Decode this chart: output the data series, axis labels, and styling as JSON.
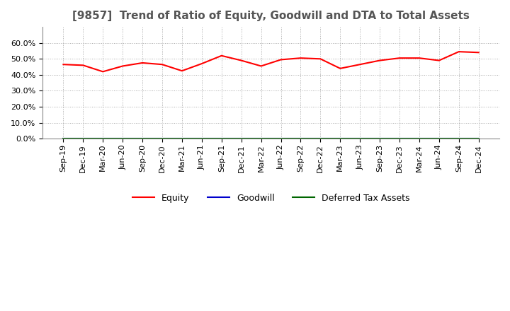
{
  "title": "[9857]  Trend of Ratio of Equity, Goodwill and DTA to Total Assets",
  "x_labels": [
    "Sep-19",
    "Dec-19",
    "Mar-20",
    "Jun-20",
    "Sep-20",
    "Dec-20",
    "Mar-21",
    "Jun-21",
    "Sep-21",
    "Dec-21",
    "Mar-22",
    "Jun-22",
    "Sep-22",
    "Dec-22",
    "Mar-23",
    "Jun-23",
    "Sep-23",
    "Dec-23",
    "Mar-24",
    "Jun-24",
    "Sep-24",
    "Dec-24"
  ],
  "equity": [
    0.465,
    0.46,
    0.42,
    0.455,
    0.475,
    0.465,
    0.425,
    0.47,
    0.52,
    0.49,
    0.455,
    0.495,
    0.505,
    0.5,
    0.44,
    0.465,
    0.49,
    0.505,
    0.505,
    0.49,
    0.545,
    0.54
  ],
  "goodwill": [
    0.0,
    0.0,
    0.0,
    0.0,
    0.0,
    0.0,
    0.0,
    0.0,
    0.0,
    0.0,
    0.0,
    0.0,
    0.0,
    0.0,
    0.0,
    0.0,
    0.0,
    0.0,
    0.0,
    0.0,
    0.0,
    0.0
  ],
  "dta": [
    0.0,
    0.0,
    0.0,
    0.0,
    0.0,
    0.0,
    0.0,
    0.0,
    0.0,
    0.0,
    0.0,
    0.0,
    0.0,
    0.0,
    0.0,
    0.0,
    0.0,
    0.0,
    0.0,
    0.0,
    0.0,
    0.0
  ],
  "equity_color": "#ff0000",
  "goodwill_color": "#0000cc",
  "dta_color": "#006600",
  "ylim": [
    0.0,
    0.7
  ],
  "yticks": [
    0.0,
    0.1,
    0.2,
    0.3,
    0.4,
    0.5,
    0.6
  ],
  "background_color": "#ffffff",
  "plot_bg_color": "#ffffff",
  "grid_color": "#aaaaaa",
  "title_fontsize": 11,
  "tick_fontsize": 8,
  "legend_fontsize": 9
}
